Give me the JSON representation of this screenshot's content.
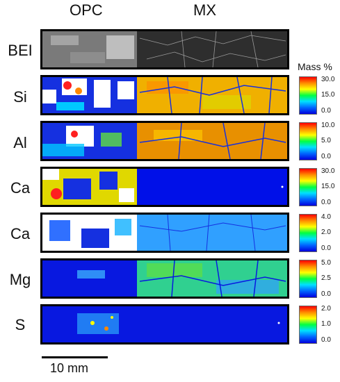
{
  "columns": [
    "OPC",
    "MX"
  ],
  "legend_title": "Mass %",
  "scale_bar_label": "10 mm",
  "rows": [
    {
      "label": "BEI",
      "ticks": []
    },
    {
      "label": "Si",
      "ticks": [
        "30.0",
        "15.0",
        "0.0"
      ]
    },
    {
      "label": "Al",
      "ticks": [
        "10.0",
        "5.0",
        "0.0"
      ]
    },
    {
      "label": "Ca",
      "ticks": [
        "30.0",
        "15.0",
        "0.0"
      ]
    },
    {
      "label": "Ca",
      "ticks": [
        "4.0",
        "2.0",
        "0.0"
      ]
    },
    {
      "label": "Mg",
      "ticks": [
        "5.0",
        "2.5",
        "0.0"
      ]
    },
    {
      "label": "S",
      "ticks": [
        "2.0",
        "1.0",
        "0.0"
      ]
    }
  ]
}
